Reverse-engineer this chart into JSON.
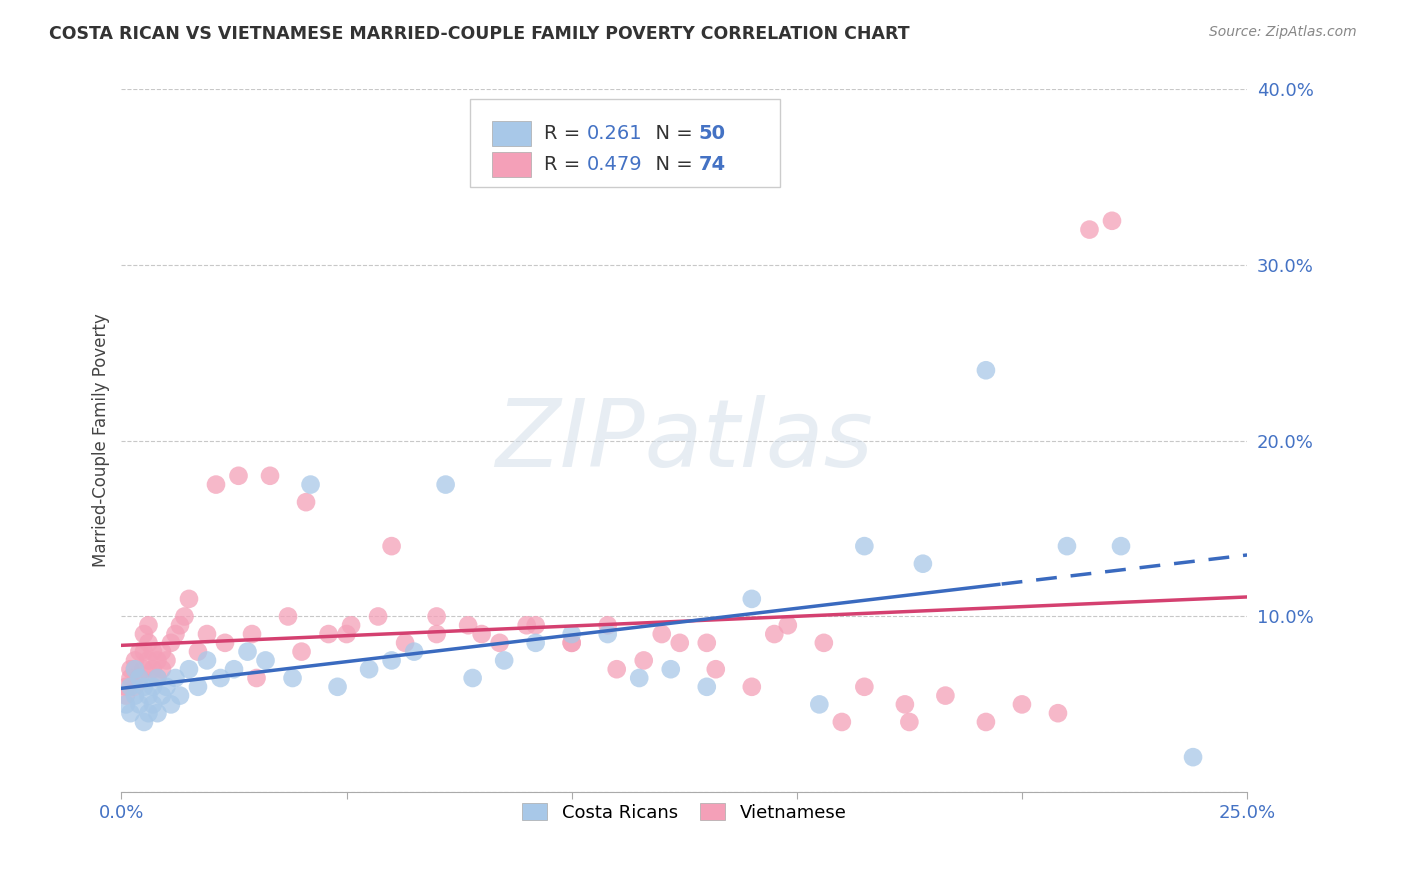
{
  "title": "COSTA RICAN VS VIETNAMESE MARRIED-COUPLE FAMILY POVERTY CORRELATION CHART",
  "source": "Source: ZipAtlas.com",
  "ylabel": "Married-Couple Family Poverty",
  "xlim": [
    0.0,
    0.25
  ],
  "ylim": [
    0.0,
    0.4
  ],
  "watermark": "ZIPatlas",
  "cr_R": "0.261",
  "cr_N": "50",
  "viet_R": "0.479",
  "viet_N": "74",
  "cr_color": "#a8c8e8",
  "viet_color": "#f4a0b8",
  "cr_line_color": "#3a6abf",
  "viet_line_color": "#d44070",
  "background_color": "#ffffff",
  "cr_x": [
    0.001,
    0.002,
    0.002,
    0.003,
    0.003,
    0.004,
    0.004,
    0.005,
    0.005,
    0.006,
    0.006,
    0.007,
    0.007,
    0.008,
    0.008,
    0.009,
    0.01,
    0.011,
    0.012,
    0.013,
    0.015,
    0.017,
    0.019,
    0.022,
    0.025,
    0.028,
    0.032,
    0.038,
    0.042,
    0.048,
    0.055,
    0.06,
    0.065,
    0.072,
    0.078,
    0.085,
    0.092,
    0.1,
    0.108,
    0.115,
    0.122,
    0.13,
    0.14,
    0.155,
    0.165,
    0.178,
    0.192,
    0.21,
    0.222,
    0.238
  ],
  "cr_y": [
    0.05,
    0.045,
    0.06,
    0.055,
    0.07,
    0.05,
    0.065,
    0.06,
    0.04,
    0.055,
    0.045,
    0.06,
    0.05,
    0.065,
    0.045,
    0.055,
    0.06,
    0.05,
    0.065,
    0.055,
    0.07,
    0.06,
    0.075,
    0.065,
    0.07,
    0.08,
    0.075,
    0.065,
    0.175,
    0.06,
    0.07,
    0.075,
    0.08,
    0.175,
    0.065,
    0.075,
    0.085,
    0.09,
    0.09,
    0.065,
    0.07,
    0.06,
    0.11,
    0.05,
    0.14,
    0.13,
    0.24,
    0.14,
    0.14,
    0.02
  ],
  "viet_x": [
    0.001,
    0.001,
    0.002,
    0.002,
    0.003,
    0.003,
    0.003,
    0.004,
    0.004,
    0.005,
    0.005,
    0.005,
    0.006,
    0.006,
    0.006,
    0.007,
    0.007,
    0.008,
    0.008,
    0.009,
    0.009,
    0.01,
    0.011,
    0.012,
    0.013,
    0.014,
    0.015,
    0.017,
    0.019,
    0.021,
    0.023,
    0.026,
    0.029,
    0.033,
    0.037,
    0.041,
    0.046,
    0.051,
    0.057,
    0.063,
    0.07,
    0.077,
    0.084,
    0.092,
    0.1,
    0.108,
    0.116,
    0.124,
    0.132,
    0.14,
    0.148,
    0.156,
    0.165,
    0.174,
    0.183,
    0.192,
    0.2,
    0.208,
    0.215,
    0.22,
    0.03,
    0.04,
    0.05,
    0.06,
    0.07,
    0.08,
    0.09,
    0.1,
    0.11,
    0.12,
    0.13,
    0.145,
    0.16,
    0.175
  ],
  "viet_y": [
    0.055,
    0.06,
    0.065,
    0.07,
    0.06,
    0.07,
    0.075,
    0.065,
    0.08,
    0.07,
    0.08,
    0.09,
    0.075,
    0.085,
    0.095,
    0.07,
    0.08,
    0.065,
    0.075,
    0.07,
    0.08,
    0.075,
    0.085,
    0.09,
    0.095,
    0.1,
    0.11,
    0.08,
    0.09,
    0.175,
    0.085,
    0.18,
    0.09,
    0.18,
    0.1,
    0.165,
    0.09,
    0.095,
    0.1,
    0.085,
    0.09,
    0.095,
    0.085,
    0.095,
    0.085,
    0.095,
    0.075,
    0.085,
    0.07,
    0.06,
    0.095,
    0.085,
    0.06,
    0.05,
    0.055,
    0.04,
    0.05,
    0.045,
    0.32,
    0.325,
    0.065,
    0.08,
    0.09,
    0.14,
    0.1,
    0.09,
    0.095,
    0.085,
    0.07,
    0.09,
    0.085,
    0.09,
    0.04,
    0.04
  ]
}
